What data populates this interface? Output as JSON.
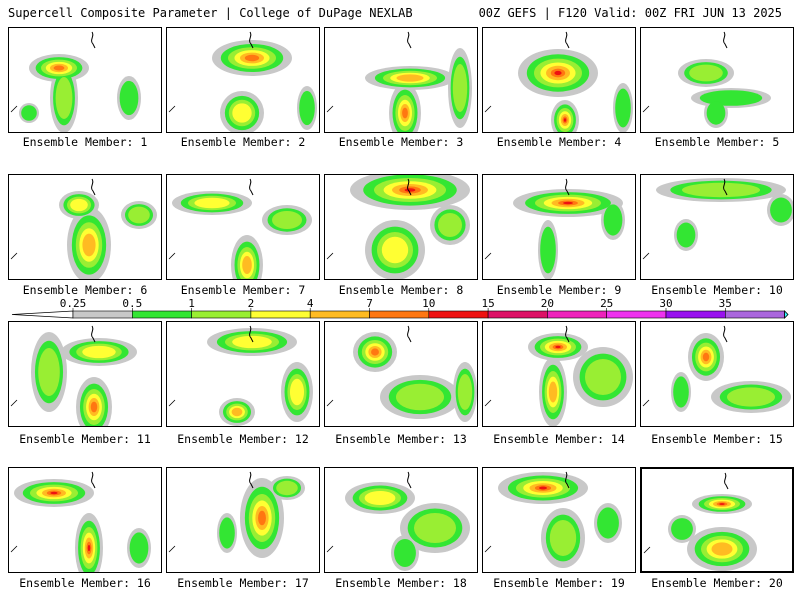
{
  "header": {
    "left": "Supercell Composite Parameter | College of DuPage NEXLAB",
    "right": "00Z GEFS | F120 Valid: 00Z FRI JUN 13 2025"
  },
  "colorbar": {
    "levels": [
      {
        "label": "0.25",
        "color": "#c8c8c8"
      },
      {
        "label": "0.5",
        "color": "#33e633"
      },
      {
        "label": "1",
        "color": "#99ee33"
      },
      {
        "label": "2",
        "color": "#ffff33"
      },
      {
        "label": "4",
        "color": "#ffbb22"
      },
      {
        "label": "7",
        "color": "#ff7711"
      },
      {
        "label": "10",
        "color": "#ee1111"
      },
      {
        "label": "15",
        "color": "#dd1166"
      },
      {
        "label": "20",
        "color": "#ee22bb"
      },
      {
        "label": "25",
        "color": "#ee33ee"
      },
      {
        "label": "30",
        "color": "#9911ee"
      },
      {
        "label": "35",
        "color": "#aa66dd"
      },
      {
        "label": "",
        "color": "#33ffff"
      }
    ]
  },
  "members": [
    {
      "label": "Ensemble Member: 1"
    },
    {
      "label": "Ensemble Member: 2"
    },
    {
      "label": "Ensemble Member: 3"
    },
    {
      "label": "Ensemble Member: 4"
    },
    {
      "label": "Ensemble Member: 5"
    },
    {
      "label": "Ensemble Member: 6"
    },
    {
      "label": "Ensemble Member: 7"
    },
    {
      "label": "Ensemble Member: 8"
    },
    {
      "label": "Ensemble Member: 9"
    },
    {
      "label": "Ensemble Member: 10"
    },
    {
      "label": "Ensemble Member: 11"
    },
    {
      "label": "Ensemble Member: 12"
    },
    {
      "label": "Ensemble Member: 13"
    },
    {
      "label": "Ensemble Member: 14"
    },
    {
      "label": "Ensemble Member: 15"
    },
    {
      "label": "Ensemble Member: 16"
    },
    {
      "label": "Ensemble Member: 17"
    },
    {
      "label": "Ensemble Member: 18"
    },
    {
      "label": "Ensemble Member: 19"
    },
    {
      "label": "Ensemble Member: 20"
    }
  ]
}
